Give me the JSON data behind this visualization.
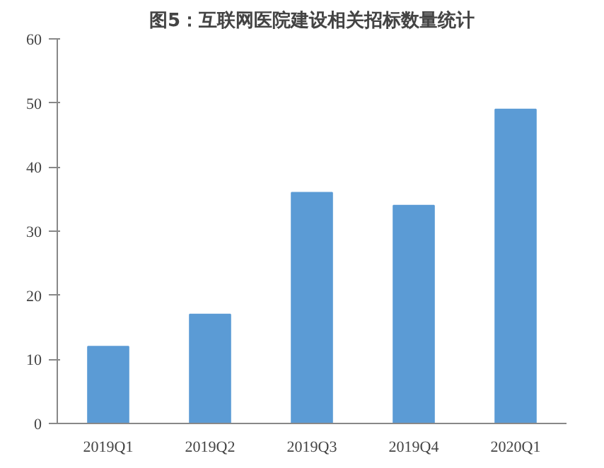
{
  "chart_data": {
    "type": "bar",
    "title": "图5：互联网医院建设相关招标数量统计",
    "categories": [
      "2019Q1",
      "2019Q2",
      "2019Q3",
      "2019Q4",
      "2020Q1"
    ],
    "values": [
      12,
      17,
      36,
      34,
      49
    ],
    "color": "#5b9bd5",
    "ylim": [
      0,
      60
    ],
    "yticks": [
      0,
      10,
      20,
      30,
      40,
      50,
      60
    ],
    "grid": false
  }
}
